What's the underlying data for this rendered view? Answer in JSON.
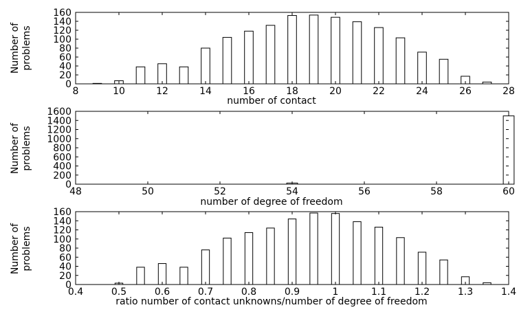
{
  "chart_data": [
    {
      "type": "bar",
      "xlabel": "number of contact",
      "ylabel": [
        "Number of",
        "problems"
      ],
      "xlim": [
        8,
        28
      ],
      "ylim": [
        0,
        160
      ],
      "xticks": [
        8,
        10,
        12,
        14,
        16,
        18,
        20,
        22,
        24,
        26,
        28
      ],
      "yticks": [
        0,
        20,
        40,
        60,
        80,
        100,
        120,
        140,
        160
      ],
      "bar_width": 0.4,
      "x": [
        9,
        10,
        11,
        12,
        13,
        14,
        15,
        16,
        17,
        18,
        19,
        20,
        21,
        22,
        23,
        24,
        25,
        26,
        27
      ],
      "values": [
        1,
        7,
        38,
        45,
        38,
        80,
        104,
        118,
        131,
        153,
        154,
        149,
        139,
        126,
        103,
        71,
        55,
        17,
        4
      ]
    },
    {
      "type": "bar",
      "xlabel": "number of degree of freedom",
      "ylabel": [
        "Number of",
        "problems"
      ],
      "xlim": [
        48,
        60
      ],
      "ylim": [
        0,
        1600
      ],
      "xticks": [
        48,
        50,
        52,
        54,
        56,
        58,
        60
      ],
      "yticks": [
        0,
        200,
        400,
        600,
        800,
        1000,
        1200,
        1400,
        1600
      ],
      "bar_width": 0.3,
      "x": [
        54,
        60
      ],
      "values": [
        25,
        1500
      ]
    },
    {
      "type": "bar",
      "xlabel": "ratio number of contact unknowns/number of degree of freedom",
      "ylabel": [
        "Number of",
        "problems"
      ],
      "xlim": [
        0.4,
        1.4
      ],
      "ylim": [
        0,
        160
      ],
      "xticks": [
        "0.4",
        "0.5",
        "0.6",
        "0.7",
        "0.8",
        "0.9",
        "1",
        "1.1",
        "1.2",
        "1.3",
        "1.4"
      ],
      "yticks": [
        0,
        20,
        40,
        60,
        80,
        100,
        120,
        140,
        160
      ],
      "bar_width": 0.018,
      "x": [
        0.5,
        0.55,
        0.6,
        0.65,
        0.7,
        0.75,
        0.8,
        0.85,
        0.9,
        0.95,
        1.0,
        1.05,
        1.1,
        1.15,
        1.2,
        1.25,
        1.3,
        1.35
      ],
      "values": [
        3,
        38,
        46,
        38,
        76,
        102,
        114,
        124,
        144,
        157,
        156,
        138,
        126,
        103,
        71,
        54,
        17,
        4
      ]
    }
  ]
}
